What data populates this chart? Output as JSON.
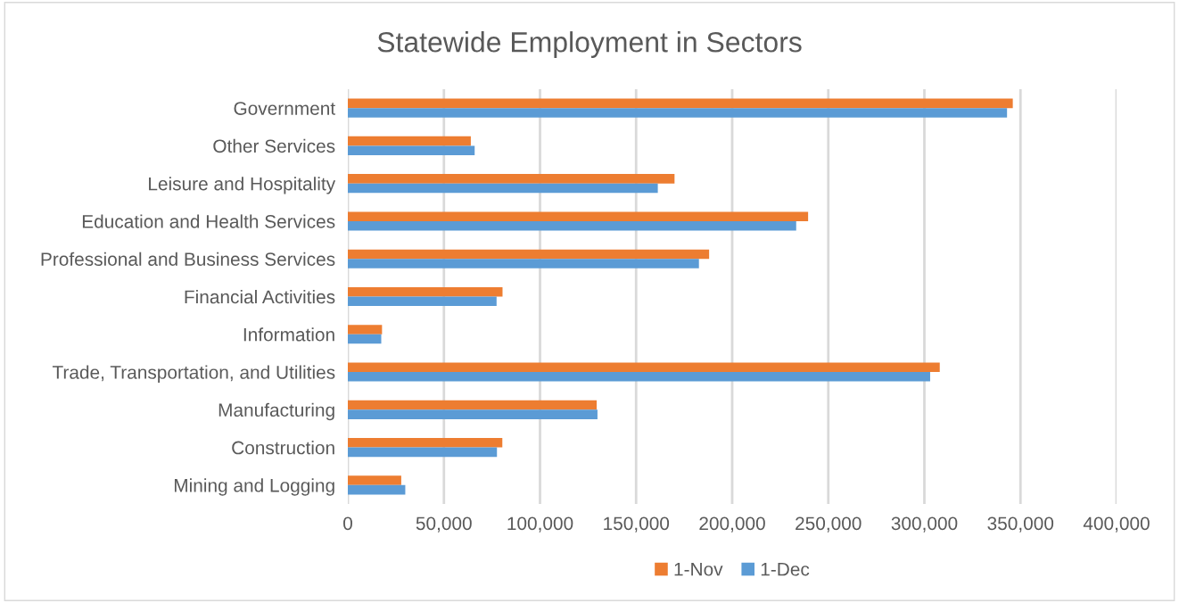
{
  "chart_data": {
    "type": "bar",
    "orientation": "horizontal",
    "title": "Statewide Employment in Sectors",
    "categories": [
      "Government",
      "Other Services",
      "Leisure and Hospitality",
      "Education and Health Services",
      "Professional and Business Services",
      "Financial Activities",
      "Information",
      "Trade, Transportation, and Utilities",
      "Manufacturing",
      "Construction",
      "Mining and Logging"
    ],
    "series": [
      {
        "name": "1-Nov",
        "color": "#ed7d31",
        "values": [
          346000,
          64000,
          170000,
          239500,
          188000,
          80500,
          17800,
          308000,
          129500,
          80400,
          27800
        ]
      },
      {
        "name": "1-Dec",
        "color": "#5b9bd5",
        "values": [
          343000,
          66000,
          161300,
          233300,
          182700,
          77400,
          17400,
          303000,
          129900,
          77600,
          29900
        ]
      }
    ],
    "xlim": [
      0,
      400000
    ],
    "xticks": [
      {
        "value": 0,
        "label": "0"
      },
      {
        "value": 50000,
        "label": "50,000"
      },
      {
        "value": 100000,
        "label": "100,000"
      },
      {
        "value": 150000,
        "label": "150,000"
      },
      {
        "value": 200000,
        "label": "200,000"
      },
      {
        "value": 250000,
        "label": "250,000"
      },
      {
        "value": 300000,
        "label": "300,000"
      },
      {
        "value": 350000,
        "label": "350,000"
      },
      {
        "value": 400000,
        "label": "400,000"
      }
    ],
    "grid": "x",
    "legend": "bottom"
  }
}
